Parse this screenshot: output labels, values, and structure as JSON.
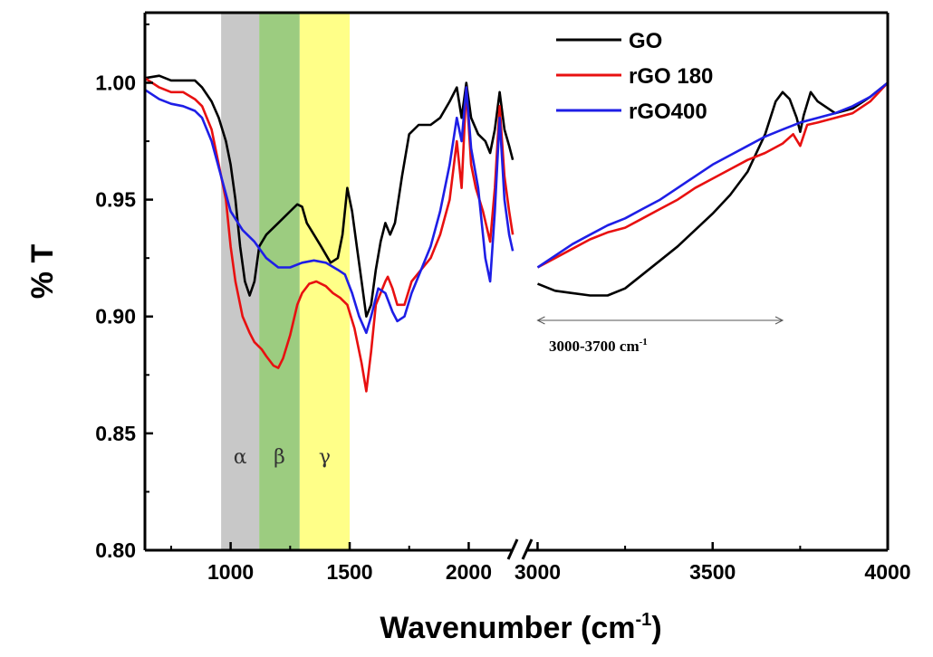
{
  "chart_data": {
    "type": "line",
    "ylabel": "% T",
    "xlabel": "Wavenumber (cm",
    "xlabel_sup": "-1",
    "xlabel_end": ")",
    "y_range": [
      0.8,
      1.03
    ],
    "y_ticks": [
      "0.80",
      "0.85",
      "0.90",
      "0.95",
      "1.00"
    ],
    "x_segments": [
      {
        "range": [
          640,
          2200
        ],
        "ticks": [
          "1000",
          "1500",
          "2000"
        ]
      },
      {
        "range": [
          2960,
          4000
        ],
        "ticks": [
          "3000",
          "3500",
          "4000"
        ]
      }
    ],
    "axis_break": true,
    "legend_position": "top-right",
    "shaded_regions": [
      {
        "label": "α",
        "from": 960,
        "to": 1120,
        "color": "#c8c8c8"
      },
      {
        "label": "β",
        "from": 1120,
        "to": 1290,
        "color": "#9ccc80"
      },
      {
        "label": "γ",
        "from": 1290,
        "to": 1500,
        "color": "#ffff88"
      }
    ],
    "annotation": {
      "text": "3000-3700 cm",
      "sup": "-1",
      "from": 3000,
      "to": 3700
    },
    "series": [
      {
        "name": "GO",
        "color": "#000000",
        "segment1": [
          [
            640,
            1.002
          ],
          [
            700,
            1.003
          ],
          [
            750,
            1.001
          ],
          [
            800,
            1.001
          ],
          [
            850,
            1.001
          ],
          [
            880,
            0.998
          ],
          [
            920,
            0.992
          ],
          [
            950,
            0.985
          ],
          [
            980,
            0.975
          ],
          [
            1000,
            0.965
          ],
          [
            1020,
            0.95
          ],
          [
            1040,
            0.93
          ],
          [
            1060,
            0.915
          ],
          [
            1080,
            0.909
          ],
          [
            1100,
            0.915
          ],
          [
            1120,
            0.93
          ],
          [
            1150,
            0.935
          ],
          [
            1200,
            0.94
          ],
          [
            1250,
            0.945
          ],
          [
            1280,
            0.948
          ],
          [
            1300,
            0.947
          ],
          [
            1320,
            0.94
          ],
          [
            1350,
            0.935
          ],
          [
            1380,
            0.93
          ],
          [
            1420,
            0.923
          ],
          [
            1450,
            0.925
          ],
          [
            1470,
            0.935
          ],
          [
            1490,
            0.955
          ],
          [
            1510,
            0.945
          ],
          [
            1530,
            0.93
          ],
          [
            1550,
            0.915
          ],
          [
            1570,
            0.9
          ],
          [
            1590,
            0.905
          ],
          [
            1610,
            0.92
          ],
          [
            1630,
            0.932
          ],
          [
            1650,
            0.94
          ],
          [
            1670,
            0.935
          ],
          [
            1690,
            0.94
          ],
          [
            1720,
            0.96
          ],
          [
            1750,
            0.978
          ],
          [
            1790,
            0.982
          ],
          [
            1840,
            0.982
          ],
          [
            1880,
            0.985
          ],
          [
            1920,
            0.992
          ],
          [
            1950,
            0.998
          ],
          [
            1970,
            0.985
          ],
          [
            1990,
            1.0
          ],
          [
            2010,
            0.985
          ],
          [
            2040,
            0.978
          ],
          [
            2070,
            0.975
          ],
          [
            2090,
            0.97
          ],
          [
            2110,
            0.98
          ],
          [
            2130,
            0.996
          ],
          [
            2150,
            0.98
          ],
          [
            2170,
            0.973
          ],
          [
            2185,
            0.967
          ]
        ],
        "segment2": [
          [
            3000,
            0.914
          ],
          [
            3050,
            0.911
          ],
          [
            3100,
            0.91
          ],
          [
            3150,
            0.909
          ],
          [
            3200,
            0.909
          ],
          [
            3250,
            0.912
          ],
          [
            3300,
            0.918
          ],
          [
            3350,
            0.924
          ],
          [
            3400,
            0.93
          ],
          [
            3450,
            0.937
          ],
          [
            3500,
            0.944
          ],
          [
            3550,
            0.952
          ],
          [
            3600,
            0.962
          ],
          [
            3650,
            0.978
          ],
          [
            3680,
            0.992
          ],
          [
            3700,
            0.996
          ],
          [
            3720,
            0.993
          ],
          [
            3740,
            0.985
          ],
          [
            3750,
            0.979
          ],
          [
            3760,
            0.986
          ],
          [
            3780,
            0.996
          ],
          [
            3800,
            0.992
          ],
          [
            3850,
            0.987
          ],
          [
            3900,
            0.989
          ],
          [
            3950,
            0.994
          ],
          [
            4000,
            1.0
          ]
        ]
      },
      {
        "name": "rGO 180",
        "color": "#e81010",
        "segment1": [
          [
            640,
            1.002
          ],
          [
            700,
            0.998
          ],
          [
            750,
            0.996
          ],
          [
            800,
            0.996
          ],
          [
            850,
            0.993
          ],
          [
            880,
            0.99
          ],
          [
            920,
            0.98
          ],
          [
            950,
            0.965
          ],
          [
            980,
            0.95
          ],
          [
            1000,
            0.93
          ],
          [
            1020,
            0.915
          ],
          [
            1050,
            0.9
          ],
          [
            1080,
            0.893
          ],
          [
            1100,
            0.889
          ],
          [
            1130,
            0.886
          ],
          [
            1150,
            0.883
          ],
          [
            1180,
            0.879
          ],
          [
            1200,
            0.878
          ],
          [
            1220,
            0.882
          ],
          [
            1250,
            0.892
          ],
          [
            1280,
            0.905
          ],
          [
            1300,
            0.91
          ],
          [
            1330,
            0.914
          ],
          [
            1360,
            0.915
          ],
          [
            1400,
            0.913
          ],
          [
            1430,
            0.91
          ],
          [
            1460,
            0.908
          ],
          [
            1490,
            0.905
          ],
          [
            1520,
            0.895
          ],
          [
            1550,
            0.88
          ],
          [
            1570,
            0.868
          ],
          [
            1590,
            0.885
          ],
          [
            1610,
            0.905
          ],
          [
            1630,
            0.91
          ],
          [
            1650,
            0.915
          ],
          [
            1660,
            0.917
          ],
          [
            1680,
            0.912
          ],
          [
            1700,
            0.905
          ],
          [
            1730,
            0.905
          ],
          [
            1760,
            0.915
          ],
          [
            1800,
            0.92
          ],
          [
            1840,
            0.925
          ],
          [
            1880,
            0.935
          ],
          [
            1920,
            0.95
          ],
          [
            1950,
            0.975
          ],
          [
            1970,
            0.955
          ],
          [
            1990,
            0.998
          ],
          [
            2010,
            0.965
          ],
          [
            2030,
            0.955
          ],
          [
            2060,
            0.945
          ],
          [
            2090,
            0.932
          ],
          [
            2110,
            0.955
          ],
          [
            2130,
            0.99
          ],
          [
            2150,
            0.96
          ],
          [
            2170,
            0.945
          ],
          [
            2185,
            0.935
          ]
        ],
        "segment2": [
          [
            3000,
            0.921
          ],
          [
            3050,
            0.925
          ],
          [
            3100,
            0.929
          ],
          [
            3150,
            0.933
          ],
          [
            3200,
            0.936
          ],
          [
            3250,
            0.938
          ],
          [
            3300,
            0.942
          ],
          [
            3350,
            0.946
          ],
          [
            3400,
            0.95
          ],
          [
            3450,
            0.955
          ],
          [
            3500,
            0.959
          ],
          [
            3550,
            0.963
          ],
          [
            3600,
            0.967
          ],
          [
            3650,
            0.97
          ],
          [
            3700,
            0.974
          ],
          [
            3730,
            0.978
          ],
          [
            3750,
            0.973
          ],
          [
            3770,
            0.982
          ],
          [
            3800,
            0.983
          ],
          [
            3850,
            0.985
          ],
          [
            3900,
            0.987
          ],
          [
            3950,
            0.992
          ],
          [
            4000,
            1.0
          ]
        ]
      },
      {
        "name": "rGO400",
        "color": "#1e1ee6",
        "segment1": [
          [
            640,
            0.997
          ],
          [
            700,
            0.993
          ],
          [
            750,
            0.991
          ],
          [
            800,
            0.99
          ],
          [
            850,
            0.988
          ],
          [
            880,
            0.985
          ],
          [
            920,
            0.975
          ],
          [
            960,
            0.96
          ],
          [
            1000,
            0.945
          ],
          [
            1050,
            0.937
          ],
          [
            1100,
            0.932
          ],
          [
            1150,
            0.925
          ],
          [
            1200,
            0.921
          ],
          [
            1250,
            0.921
          ],
          [
            1300,
            0.923
          ],
          [
            1350,
            0.924
          ],
          [
            1400,
            0.923
          ],
          [
            1450,
            0.92
          ],
          [
            1480,
            0.918
          ],
          [
            1510,
            0.91
          ],
          [
            1540,
            0.9
          ],
          [
            1570,
            0.893
          ],
          [
            1590,
            0.9
          ],
          [
            1620,
            0.912
          ],
          [
            1650,
            0.91
          ],
          [
            1680,
            0.902
          ],
          [
            1700,
            0.898
          ],
          [
            1730,
            0.9
          ],
          [
            1760,
            0.91
          ],
          [
            1800,
            0.92
          ],
          [
            1840,
            0.93
          ],
          [
            1880,
            0.945
          ],
          [
            1920,
            0.965
          ],
          [
            1950,
            0.985
          ],
          [
            1970,
            0.975
          ],
          [
            1990,
            0.998
          ],
          [
            2010,
            0.972
          ],
          [
            2040,
            0.955
          ],
          [
            2070,
            0.925
          ],
          [
            2090,
            0.915
          ],
          [
            2110,
            0.945
          ],
          [
            2130,
            0.985
          ],
          [
            2150,
            0.95
          ],
          [
            2170,
            0.935
          ],
          [
            2185,
            0.928
          ]
        ],
        "segment2": [
          [
            3000,
            0.921
          ],
          [
            3050,
            0.926
          ],
          [
            3100,
            0.931
          ],
          [
            3150,
            0.935
          ],
          [
            3200,
            0.939
          ],
          [
            3250,
            0.942
          ],
          [
            3300,
            0.946
          ],
          [
            3350,
            0.95
          ],
          [
            3400,
            0.955
          ],
          [
            3450,
            0.96
          ],
          [
            3500,
            0.965
          ],
          [
            3550,
            0.969
          ],
          [
            3600,
            0.973
          ],
          [
            3650,
            0.977
          ],
          [
            3700,
            0.98
          ],
          [
            3750,
            0.983
          ],
          [
            3800,
            0.985
          ],
          [
            3850,
            0.987
          ],
          [
            3900,
            0.99
          ],
          [
            3950,
            0.994
          ],
          [
            4000,
            1.0
          ]
        ]
      }
    ]
  }
}
